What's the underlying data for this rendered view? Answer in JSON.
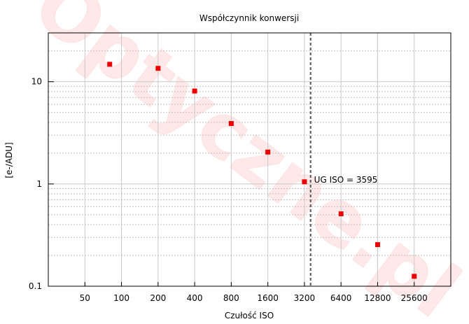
{
  "chart_data": {
    "type": "scatter",
    "title": "Współczynnik konwersji",
    "xlabel": "Czułość ISO",
    "ylabel": "[e-/ADU]",
    "x_scale": "log2",
    "y_scale": "log10",
    "xlim": [
      25,
      51200
    ],
    "ylim": [
      0.1,
      30
    ],
    "grid": true,
    "x_tick_labels": [
      "50",
      "100",
      "200",
      "400",
      "800",
      "1600",
      "3200",
      "6400",
      "12800",
      "25600"
    ],
    "y_tick_labels": [
      "0.1",
      "1",
      "10"
    ],
    "points": [
      {
        "x": 80,
        "y": 14.8
      },
      {
        "x": 200,
        "y": 13.5
      },
      {
        "x": 400,
        "y": 8.1
      },
      {
        "x": 800,
        "y": 3.9
      },
      {
        "x": 1600,
        "y": 2.05
      },
      {
        "x": 3200,
        "y": 1.05
      },
      {
        "x": 6400,
        "y": 0.51
      },
      {
        "x": 12800,
        "y": 0.255
      },
      {
        "x": 25600,
        "y": 0.125
      }
    ],
    "marker_color": "#ee0000",
    "unity_gain": {
      "x": 3595,
      "label": "UG ISO = 3595"
    },
    "watermark": "Optyczne.pl"
  }
}
